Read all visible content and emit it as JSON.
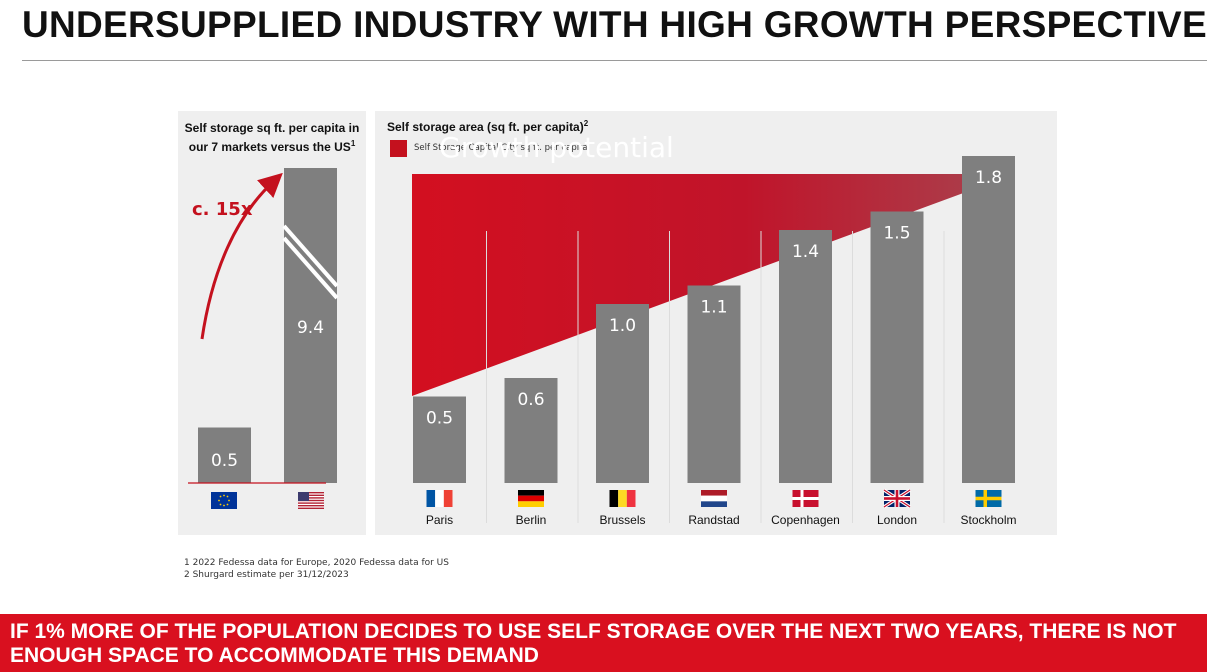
{
  "header": {
    "title": "UNDERSUPPLIED INDUSTRY WITH HIGH GROWTH PERSPECTIVE"
  },
  "left_panel": {
    "title_line1": "Self storage sq ft. per capita in",
    "title_line2": "our 7 markets versus the US",
    "title_sup": "1",
    "multiplier": "c. 15x"
  },
  "right_panel": {
    "title": "Self storage area (sq ft. per capita)",
    "title_sup": "2",
    "legend_label": "Self Storage Capital City sq ft. per capita",
    "growth_label": "Growth potential"
  },
  "colors": {
    "bar": "#7f7f7f",
    "accent_red": "#c4111e",
    "banner": "#d9101f",
    "panel_bg": "#efefef"
  },
  "chart_data": [
    {
      "type": "bar",
      "title": "Self storage sq ft. per capita in our 7 markets versus the US",
      "categories": [
        "EU flag",
        "US flag"
      ],
      "values": [
        0.5,
        9.4
      ],
      "value_labels": [
        "0.5",
        "9.4"
      ],
      "annotation": "c. 15x",
      "axis_break_on_second_bar": true
    },
    {
      "type": "bar",
      "title": "Self storage area (sq ft. per capita)",
      "categories": [
        "Paris",
        "Berlin",
        "Brussels",
        "Randstad",
        "Copenhagen",
        "London",
        "Stockholm"
      ],
      "values": [
        0.5,
        0.6,
        1.0,
        1.1,
        1.4,
        1.5,
        1.8
      ],
      "value_labels": [
        "0.5",
        "0.6",
        "1.0",
        "1.1",
        "1.4",
        "1.5",
        "1.8"
      ],
      "flags": [
        "france-flag",
        "germany-flag",
        "belgium-flag",
        "netherlands-flag",
        "denmark-flag",
        "uk-flag",
        "sweden-flag"
      ],
      "legend": [
        "Self Storage Capital City sq ft. per capita"
      ]
    }
  ],
  "footnotes": [
    "1  2022 Fedessa data for Europe, 2020 Fedessa data for US",
    "2  Shurgard estimate per 31/12/2023"
  ],
  "banner": {
    "text": "IF 1% MORE OF THE POPULATION DECIDES TO USE SELF STORAGE OVER THE NEXT TWO YEARS, THERE IS NOT ENOUGH SPACE TO ACCOMMODATE THIS DEMAND"
  }
}
